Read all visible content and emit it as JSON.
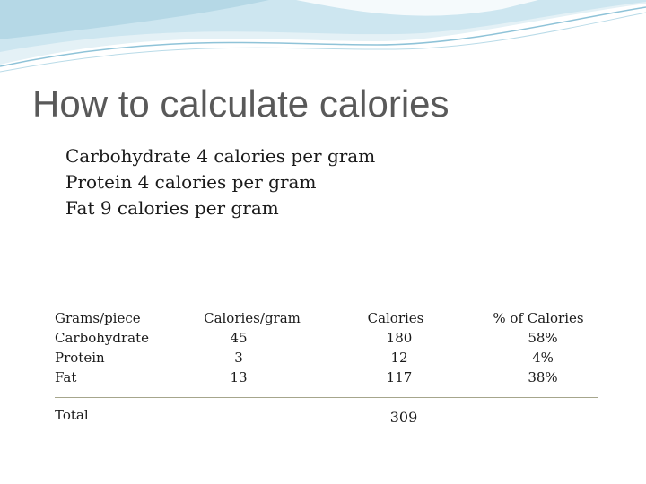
{
  "slide": {
    "title": "How to calculate calories",
    "rules": [
      "Carbohydrate 4 calories per gram",
      "Protein 4 calories per gram",
      "Fat 9 calories per gram"
    ]
  },
  "table": {
    "headers": [
      "Grams/piece",
      "Calories/gram",
      "Calories",
      "% of Calories"
    ],
    "rows": [
      {
        "name": "Carbohydrate",
        "grams": "45",
        "calories": "180",
        "percent": "58%"
      },
      {
        "name": "Protein",
        "grams": "3",
        "calories": "12",
        "percent": "4%"
      },
      {
        "name": "Fat",
        "grams": "13",
        "calories": "117",
        "percent": "38%"
      }
    ],
    "total_label": "Total",
    "total_value": "309"
  },
  "colors": {
    "title": "#595959",
    "wave_light": "#cde6f0",
    "wave_mid": "#8fc3d8",
    "divider": "#a6a68c"
  }
}
